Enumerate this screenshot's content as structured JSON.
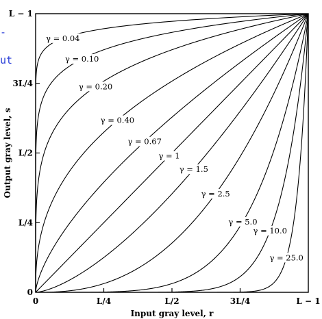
{
  "slide_fragments": {
    "dash": "-",
    "word": "ut"
  },
  "chart_data": {
    "type": "line",
    "title": "",
    "xlabel": "Input gray level, r",
    "ylabel": "Output gray level, s",
    "xlim": [
      0,
      1
    ],
    "ylim": [
      0,
      1
    ],
    "x_ticks": [
      {
        "value": 0,
        "label": "0"
      },
      {
        "value": 0.25,
        "label": "L/4"
      },
      {
        "value": 0.5,
        "label": "L/2"
      },
      {
        "value": 0.75,
        "label": "3L/4"
      },
      {
        "value": 1,
        "label": "L − 1"
      }
    ],
    "y_ticks": [
      {
        "value": 0,
        "label": "0"
      },
      {
        "value": 0.25,
        "label": "L/4"
      },
      {
        "value": 0.5,
        "label": "L/2"
      },
      {
        "value": 0.75,
        "label": "3L/4"
      },
      {
        "value": 1,
        "label": "L − 1"
      }
    ],
    "grid": false,
    "legend": "none",
    "series_color": "#000000",
    "series": [
      {
        "gamma": 0.04,
        "label": "γ = 0.04",
        "label_at_x": 0.1
      },
      {
        "gamma": 0.1,
        "label": "γ = 0.10",
        "label_at_x": 0.17
      },
      {
        "gamma": 0.2,
        "label": "γ = 0.20",
        "label_at_x": 0.22
      },
      {
        "gamma": 0.4,
        "label": "γ = 0.40",
        "label_at_x": 0.3
      },
      {
        "gamma": 0.67,
        "label": "γ = 0.67",
        "label_at_x": 0.4
      },
      {
        "gamma": 1,
        "label": "γ = 1",
        "label_at_x": 0.49
      },
      {
        "gamma": 1.5,
        "label": "γ = 1.5",
        "label_at_x": 0.58
      },
      {
        "gamma": 2.5,
        "label": "γ = 2.5",
        "label_at_x": 0.66
      },
      {
        "gamma": 5.0,
        "label": "γ = 5.0",
        "label_at_x": 0.76
      },
      {
        "gamma": 10.0,
        "label": "γ = 10.0",
        "label_at_x": 0.86
      },
      {
        "gamma": 25.0,
        "label": "γ = 25.0",
        "label_at_x": 0.92
      }
    ]
  }
}
